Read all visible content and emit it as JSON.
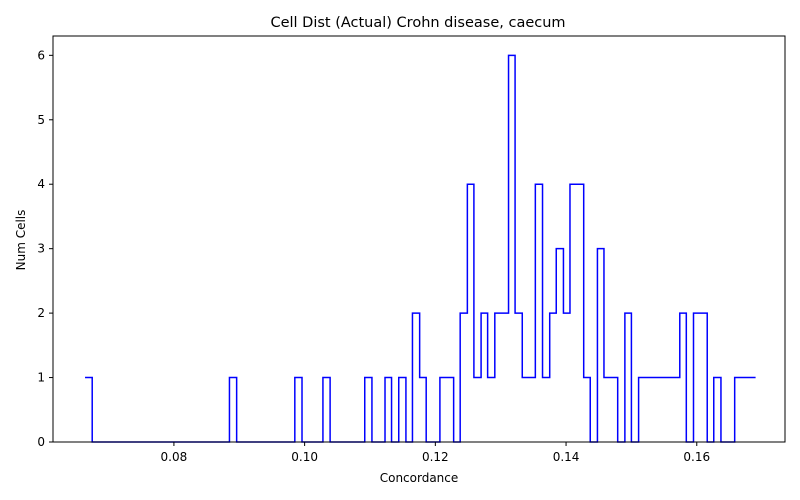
{
  "chart_data": {
    "type": "histogram-step",
    "title": "Cell Dist (Actual) Crohn disease, caecum",
    "xlabel": "Concordance",
    "ylabel": "Num Cells",
    "xlim": [
      0.0615,
      0.1735
    ],
    "ylim": [
      0,
      6.3
    ],
    "xticks": [
      0.08,
      0.1,
      0.12,
      0.14,
      0.16
    ],
    "xtick_labels": [
      "0.08",
      "0.10",
      "0.12",
      "0.14",
      "0.16"
    ],
    "yticks": [
      0,
      1,
      2,
      3,
      4,
      5,
      6
    ],
    "ytick_labels": [
      "0",
      "1",
      "2",
      "3",
      "4",
      "5",
      "6"
    ],
    "grid": false,
    "line_color": "#0000ff",
    "bin_edges": [
      0.0664,
      0.0675,
      0.0885,
      0.0896,
      0.0985,
      0.0996,
      0.1028,
      0.1039,
      0.1092,
      0.1103,
      0.1123,
      0.1133,
      0.1144,
      0.1155,
      0.1165,
      0.1176,
      0.1186,
      0.1207,
      0.1228,
      0.1238,
      0.1249,
      0.1259,
      0.127,
      0.128,
      0.1291,
      0.1312,
      0.1322,
      0.1333,
      0.1353,
      0.1364,
      0.1375,
      0.1385,
      0.1396,
      0.1406,
      0.1427,
      0.1437,
      0.1448,
      0.1458,
      0.1479,
      0.149,
      0.15,
      0.1511,
      0.1521,
      0.1532,
      0.1574,
      0.1584,
      0.1595,
      0.1616,
      0.1626,
      0.1637,
      0.1658,
      0.1668,
      0.169
    ],
    "counts": [
      1,
      0,
      1,
      0,
      1,
      0,
      1,
      0,
      1,
      0,
      1,
      0,
      1,
      0,
      2,
      1,
      0,
      1,
      0,
      2,
      4,
      1,
      2,
      1,
      2,
      6,
      2,
      1,
      4,
      1,
      2,
      3,
      2,
      4,
      1,
      0,
      3,
      1,
      0,
      2,
      0,
      1,
      1,
      1,
      2,
      0,
      2,
      0,
      1,
      0,
      1,
      1
    ]
  }
}
